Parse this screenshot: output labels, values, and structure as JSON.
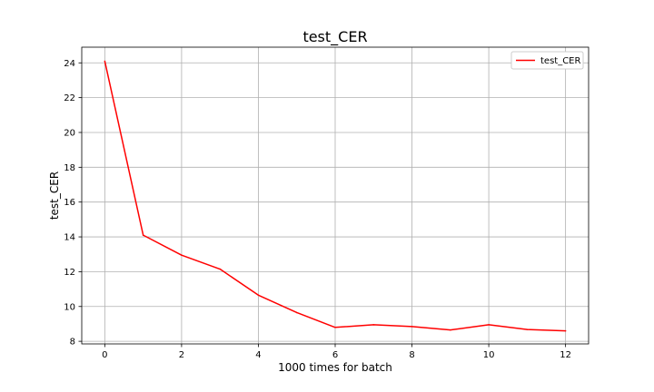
{
  "chart_data": {
    "type": "line",
    "title": "test_CER",
    "xlabel": "1000 times for batch",
    "ylabel": "test_CER",
    "x": [
      0,
      1,
      2,
      3,
      4,
      5,
      6,
      7,
      8,
      9,
      10,
      11,
      12
    ],
    "series": [
      {
        "name": "test_CER",
        "color": "#ff0000",
        "values": [
          24.1,
          14.1,
          12.95,
          12.15,
          10.65,
          9.65,
          8.8,
          8.95,
          8.85,
          8.65,
          8.95,
          8.68,
          8.6
        ]
      }
    ],
    "xlim": [
      -0.6,
      12.6
    ],
    "ylim": [
      7.85,
      24.9
    ],
    "xticks": [
      0,
      2,
      4,
      6,
      8,
      10,
      12
    ],
    "yticks": [
      8,
      10,
      12,
      14,
      16,
      18,
      20,
      22,
      24
    ],
    "grid": true,
    "legend_position": "top-right"
  }
}
